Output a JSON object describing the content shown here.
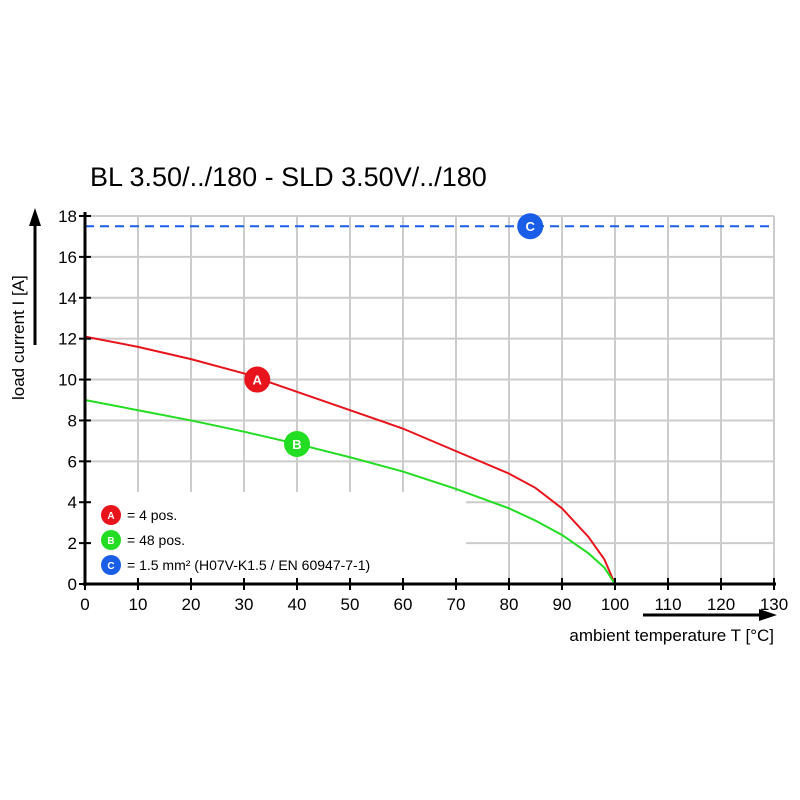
{
  "chart_data": {
    "type": "line",
    "title": "BL 3.50/../180 - SLD 3.50V/../180",
    "xlabel": "ambient temperature T [°C]",
    "ylabel": "load current I [A]",
    "xlim": [
      0,
      130
    ],
    "ylim": [
      0,
      18
    ],
    "xticks": [
      0,
      10,
      20,
      30,
      40,
      50,
      60,
      70,
      80,
      90,
      100,
      110,
      120,
      130
    ],
    "yticks": [
      0,
      2,
      4,
      6,
      8,
      10,
      12,
      14,
      16,
      18
    ],
    "grid": true,
    "legend_placement": "bottom-left",
    "series": [
      {
        "marker": "A",
        "legend": "= 4 pos.",
        "color": "#e8141b",
        "marker_at": [
          32.5,
          10
        ],
        "x": [
          0,
          10,
          20,
          30,
          40,
          50,
          60,
          70,
          80,
          85,
          90,
          95,
          98,
          100
        ],
        "y": [
          12.1,
          11.6,
          11.0,
          10.3,
          9.4,
          8.5,
          7.6,
          6.5,
          5.4,
          4.7,
          3.7,
          2.3,
          1.2,
          0
        ]
      },
      {
        "marker": "B",
        "legend": "= 48 pos.",
        "color": "#22dd22",
        "marker_at": [
          40,
          6.85
        ],
        "x": [
          0,
          10,
          20,
          30,
          40,
          50,
          60,
          70,
          80,
          85,
          90,
          95,
          98,
          100
        ],
        "y": [
          9.0,
          8.5,
          8.0,
          7.45,
          6.85,
          6.2,
          5.5,
          4.65,
          3.7,
          3.1,
          2.4,
          1.5,
          0.8,
          0
        ]
      },
      {
        "marker": "C",
        "legend": "= 1.5 mm² (H07V-K1.5 / EN 60947-7-1)",
        "color": "#1a5ee8",
        "marker_at": [
          84,
          17.5
        ],
        "style": "dashed",
        "x": [
          0,
          130
        ],
        "y": [
          17.5,
          17.5
        ]
      }
    ]
  }
}
